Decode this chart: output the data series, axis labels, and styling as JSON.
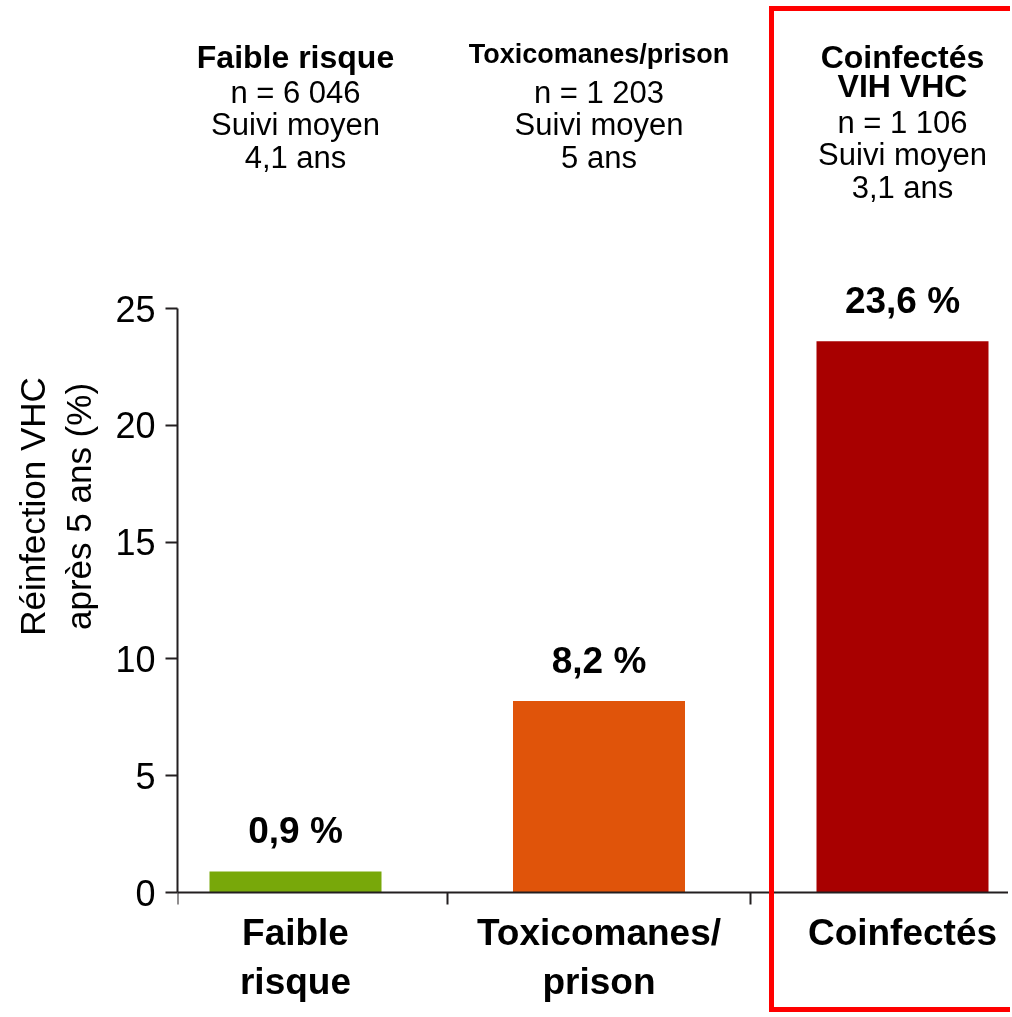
{
  "chart_data": {
    "type": "bar",
    "ylabel": "Réinfection VHC\naprès 5 ans (%)",
    "categories": [
      "Faible\nrisque",
      "Toxicomanes/\nprison",
      "Coinfectés"
    ],
    "values": [
      0.9,
      8.2,
      23.6
    ],
    "colors": [
      "#78a80a",
      "#e0540a",
      "#a80000"
    ],
    "value_labels": [
      "0,9 %",
      "8,2 %",
      "23,6 %"
    ],
    "ylim": [
      0,
      25
    ],
    "yticks": [
      0,
      5,
      10,
      15,
      20,
      25
    ],
    "grid": false,
    "annotations": [
      "Faible risque",
      "n = 6 046\nSuivi moyen\n4,1 ans",
      "Toxicomanes/prison",
      "n = 1 203\nSuivi moyen\n5 ans",
      "Coinfectés\nVIH VHC",
      "n = 1 106\nSuivi moyen\n3,1 ans"
    ]
  }
}
